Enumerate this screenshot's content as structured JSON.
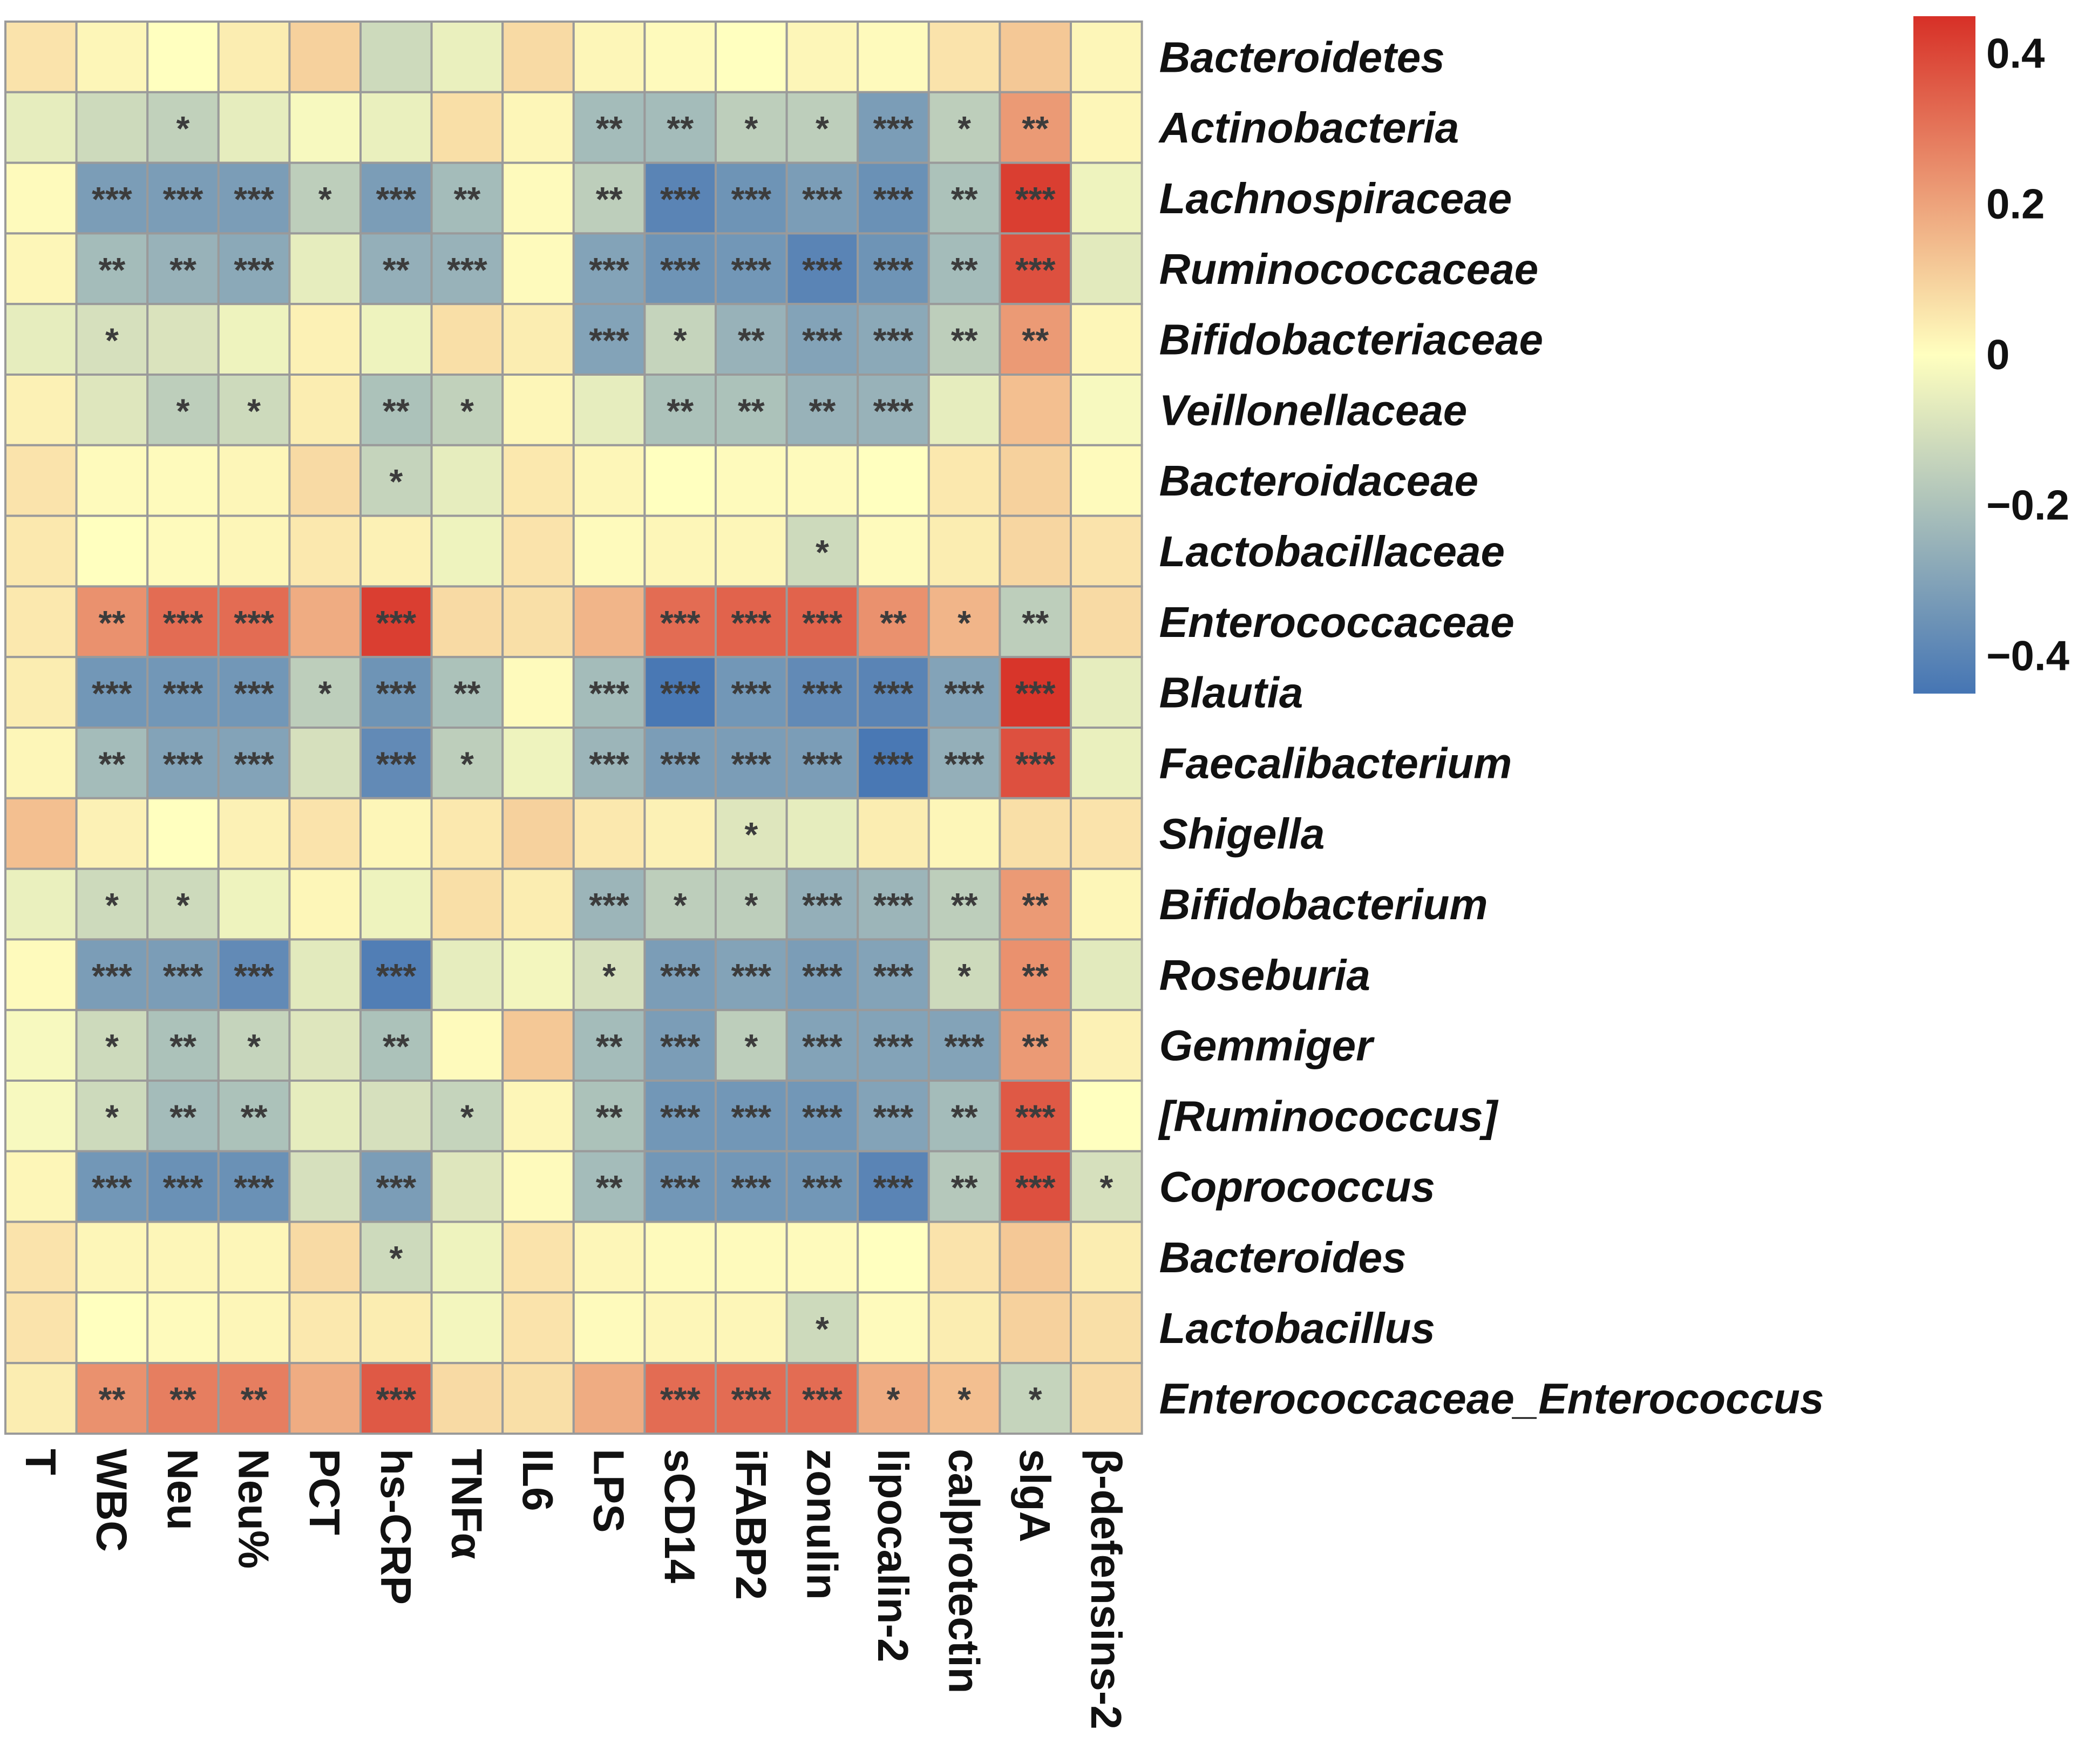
{
  "colors": {
    "high": "#d73027",
    "mid": "#ffffbf",
    "low": "#4575b4",
    "grid": "#9a9a9a",
    "text": "#111111"
  },
  "chart_data": {
    "type": "heatmap",
    "title": "",
    "columns": [
      "T",
      "WBC",
      "Neu",
      "Neu%",
      "PCT",
      "hs-CRP",
      "TNFα",
      "IL6",
      "LPS",
      "sCD14",
      "iFABP2",
      "zonulin",
      "lipocalin-2",
      "calprotectin",
      "slgA",
      "β-defensins-2"
    ],
    "rows": [
      "Bacteroidetes",
      "Actinobacteria",
      "Lachnospiraceae",
      "Ruminococcaceae",
      "Bifidobacteriaceae",
      "Veillonellaceae",
      "Bacteroidaceae",
      "Lactobacillaceae",
      "Enterococcaceae",
      "Blautia",
      "Faecalibacterium",
      "Shigella",
      "Bifidobacterium",
      "Roseburia",
      "Gemmiger",
      "[Ruminococcus]",
      "Coprococcus",
      "Bacteroides",
      "Lactobacillus",
      "Enterococcaceae_Enterococcus"
    ],
    "values": [
      [
        0.06,
        0.02,
        0.0,
        0.04,
        0.1,
        -0.12,
        -0.05,
        0.08,
        0.02,
        0.01,
        0.0,
        0.02,
        0.01,
        0.06,
        0.12,
        0.02
      ],
      [
        -0.06,
        -0.12,
        -0.15,
        -0.06,
        -0.02,
        -0.05,
        0.07,
        0.02,
        -0.22,
        -0.22,
        -0.16,
        -0.16,
        -0.32,
        -0.16,
        0.22,
        0.02
      ],
      [
        0.01,
        -0.32,
        -0.32,
        -0.32,
        -0.16,
        -0.32,
        -0.22,
        0.01,
        -0.16,
        -0.4,
        -0.35,
        -0.32,
        -0.36,
        -0.2,
        0.42,
        -0.04
      ],
      [
        0.02,
        -0.22,
        -0.25,
        -0.28,
        -0.06,
        -0.26,
        -0.25,
        0.01,
        -0.3,
        -0.35,
        -0.34,
        -0.4,
        -0.35,
        -0.22,
        0.38,
        -0.07
      ],
      [
        -0.06,
        -0.1,
        -0.09,
        -0.04,
        0.03,
        -0.04,
        0.07,
        0.04,
        -0.3,
        -0.14,
        -0.25,
        -0.3,
        -0.28,
        -0.16,
        0.22,
        0.02
      ],
      [
        0.03,
        -0.08,
        -0.16,
        -0.12,
        0.04,
        -0.2,
        -0.15,
        0.02,
        -0.06,
        -0.2,
        -0.2,
        -0.25,
        -0.25,
        -0.06,
        0.14,
        -0.02
      ],
      [
        0.06,
        0.01,
        0.01,
        0.02,
        0.08,
        -0.14,
        -0.06,
        0.05,
        0.02,
        0.0,
        0.01,
        0.01,
        0.0,
        0.05,
        0.1,
        0.01
      ],
      [
        0.05,
        0.0,
        0.01,
        0.02,
        0.05,
        0.03,
        -0.04,
        0.06,
        0.01,
        0.02,
        0.02,
        -0.12,
        0.01,
        0.04,
        0.09,
        0.06
      ],
      [
        0.05,
        0.24,
        0.32,
        0.32,
        0.18,
        0.42,
        0.08,
        0.07,
        0.16,
        0.32,
        0.34,
        0.34,
        0.24,
        0.16,
        -0.16,
        0.08
      ],
      [
        0.04,
        -0.34,
        -0.34,
        -0.34,
        -0.16,
        -0.35,
        -0.2,
        0.01,
        -0.22,
        -0.44,
        -0.34,
        -0.38,
        -0.4,
        -0.3,
        0.44,
        -0.06
      ],
      [
        0.02,
        -0.22,
        -0.3,
        -0.3,
        -0.1,
        -0.38,
        -0.16,
        -0.04,
        -0.24,
        -0.32,
        -0.32,
        -0.32,
        -0.44,
        -0.26,
        0.38,
        -0.05
      ],
      [
        0.14,
        0.03,
        0.0,
        0.03,
        0.06,
        0.02,
        0.05,
        0.1,
        0.05,
        0.03,
        -0.08,
        -0.06,
        0.04,
        0.02,
        0.07,
        0.06
      ],
      [
        -0.05,
        -0.12,
        -0.12,
        -0.04,
        0.02,
        -0.04,
        0.07,
        0.04,
        -0.24,
        -0.16,
        -0.16,
        -0.26,
        -0.24,
        -0.16,
        0.22,
        0.02
      ],
      [
        0.01,
        -0.32,
        -0.32,
        -0.38,
        -0.07,
        -0.42,
        -0.06,
        -0.03,
        -0.1,
        -0.32,
        -0.3,
        -0.32,
        -0.3,
        -0.12,
        0.24,
        -0.07
      ],
      [
        -0.02,
        -0.12,
        -0.2,
        -0.14,
        -0.08,
        -0.2,
        0.01,
        0.12,
        -0.22,
        -0.32,
        -0.16,
        -0.3,
        -0.3,
        -0.3,
        0.22,
        0.03
      ],
      [
        -0.02,
        -0.12,
        -0.22,
        -0.2,
        -0.06,
        -0.1,
        -0.14,
        0.02,
        -0.2,
        -0.34,
        -0.34,
        -0.34,
        -0.3,
        -0.22,
        0.36,
        0.0
      ],
      [
        0.02,
        -0.34,
        -0.36,
        -0.36,
        -0.1,
        -0.32,
        -0.08,
        0.01,
        -0.22,
        -0.34,
        -0.34,
        -0.34,
        -0.4,
        -0.18,
        0.38,
        -0.1
      ],
      [
        0.06,
        0.02,
        0.02,
        0.02,
        0.08,
        -0.12,
        -0.04,
        0.06,
        0.02,
        0.01,
        0.01,
        0.01,
        0.0,
        0.06,
        0.12,
        0.04
      ],
      [
        0.06,
        0.0,
        0.01,
        0.02,
        0.05,
        0.04,
        -0.03,
        0.06,
        0.01,
        0.02,
        0.02,
        -0.12,
        0.01,
        0.04,
        0.1,
        0.07
      ],
      [
        0.04,
        0.24,
        0.28,
        0.28,
        0.18,
        0.36,
        0.08,
        0.07,
        0.18,
        0.32,
        0.32,
        0.32,
        0.18,
        0.14,
        -0.14,
        0.08
      ]
    ],
    "significance": [
      [
        "",
        "",
        "",
        "",
        "",
        "",
        "",
        "",
        "",
        "",
        "",
        "",
        "",
        "",
        "",
        ""
      ],
      [
        "",
        "",
        "*",
        "",
        "",
        "",
        "",
        "",
        "**",
        "**",
        "*",
        "*",
        "***",
        "*",
        "**",
        ""
      ],
      [
        "",
        "***",
        "***",
        "***",
        "*",
        "***",
        "**",
        "",
        "**",
        "***",
        "***",
        "***",
        "***",
        "**",
        "***",
        ""
      ],
      [
        "",
        "**",
        "**",
        "***",
        "",
        "**",
        "***",
        "",
        "***",
        "***",
        "***",
        "***",
        "***",
        "**",
        "***",
        ""
      ],
      [
        "",
        "*",
        "",
        "",
        "",
        "",
        "",
        "",
        "***",
        "*",
        "**",
        "***",
        "***",
        "**",
        "**",
        ""
      ],
      [
        "",
        "",
        "*",
        "*",
        "",
        "**",
        "*",
        "",
        "",
        "**",
        "**",
        "**",
        "***",
        "",
        "",
        ""
      ],
      [
        "",
        "",
        "",
        "",
        "",
        "*",
        "",
        "",
        "",
        "",
        "",
        "",
        "",
        "",
        "",
        ""
      ],
      [
        "",
        "",
        "",
        "",
        "",
        "",
        "",
        "",
        "",
        "",
        "",
        "*",
        "",
        "",
        "",
        ""
      ],
      [
        "",
        "**",
        "***",
        "***",
        "",
        "***",
        "",
        "",
        "",
        "***",
        "***",
        "***",
        "**",
        "*",
        "**",
        ""
      ],
      [
        "",
        "***",
        "***",
        "***",
        "*",
        "***",
        "**",
        "",
        "***",
        "***",
        "***",
        "***",
        "***",
        "***",
        "***",
        ""
      ],
      [
        "",
        "**",
        "***",
        "***",
        "",
        "***",
        "*",
        "",
        "***",
        "***",
        "***",
        "***",
        "***",
        "***",
        "***",
        ""
      ],
      [
        "",
        "",
        "",
        "",
        "",
        "",
        "",
        "",
        "",
        "",
        "*",
        "",
        "",
        "",
        "",
        ""
      ],
      [
        "",
        "*",
        "*",
        "",
        "",
        "",
        "",
        "",
        "***",
        "*",
        "*",
        "***",
        "***",
        "**",
        "**",
        ""
      ],
      [
        "",
        "***",
        "***",
        "***",
        "",
        "***",
        "",
        "",
        "*",
        "***",
        "***",
        "***",
        "***",
        "*",
        "**",
        ""
      ],
      [
        "",
        "*",
        "**",
        "*",
        "",
        "**",
        "",
        "",
        "**",
        "***",
        "*",
        "***",
        "***",
        "***",
        "**",
        ""
      ],
      [
        "",
        "*",
        "**",
        "**",
        "",
        "",
        "*",
        "",
        "**",
        "***",
        "***",
        "***",
        "***",
        "**",
        "***",
        ""
      ],
      [
        "",
        "***",
        "***",
        "***",
        "",
        "***",
        "",
        "",
        "**",
        "***",
        "***",
        "***",
        "***",
        "**",
        "***",
        "*"
      ],
      [
        "",
        "",
        "",
        "",
        "",
        "*",
        "",
        "",
        "",
        "",
        "",
        "",
        "",
        "",
        "",
        ""
      ],
      [
        "",
        "",
        "",
        "",
        "",
        "",
        "",
        "",
        "",
        "",
        "",
        "*",
        "",
        "",
        "",
        ""
      ],
      [
        "",
        "**",
        "**",
        "**",
        "",
        "***",
        "",
        "",
        "",
        "***",
        "***",
        "***",
        "*",
        "*",
        "*",
        ""
      ]
    ],
    "colorbar": {
      "range": [
        -0.45,
        0.45
      ],
      "ticks": [
        0.4,
        0.2,
        0,
        -0.2,
        -0.4
      ],
      "tick_labels": [
        "0.4",
        "0.2",
        "0",
        "−0.2",
        "−0.4"
      ]
    }
  }
}
